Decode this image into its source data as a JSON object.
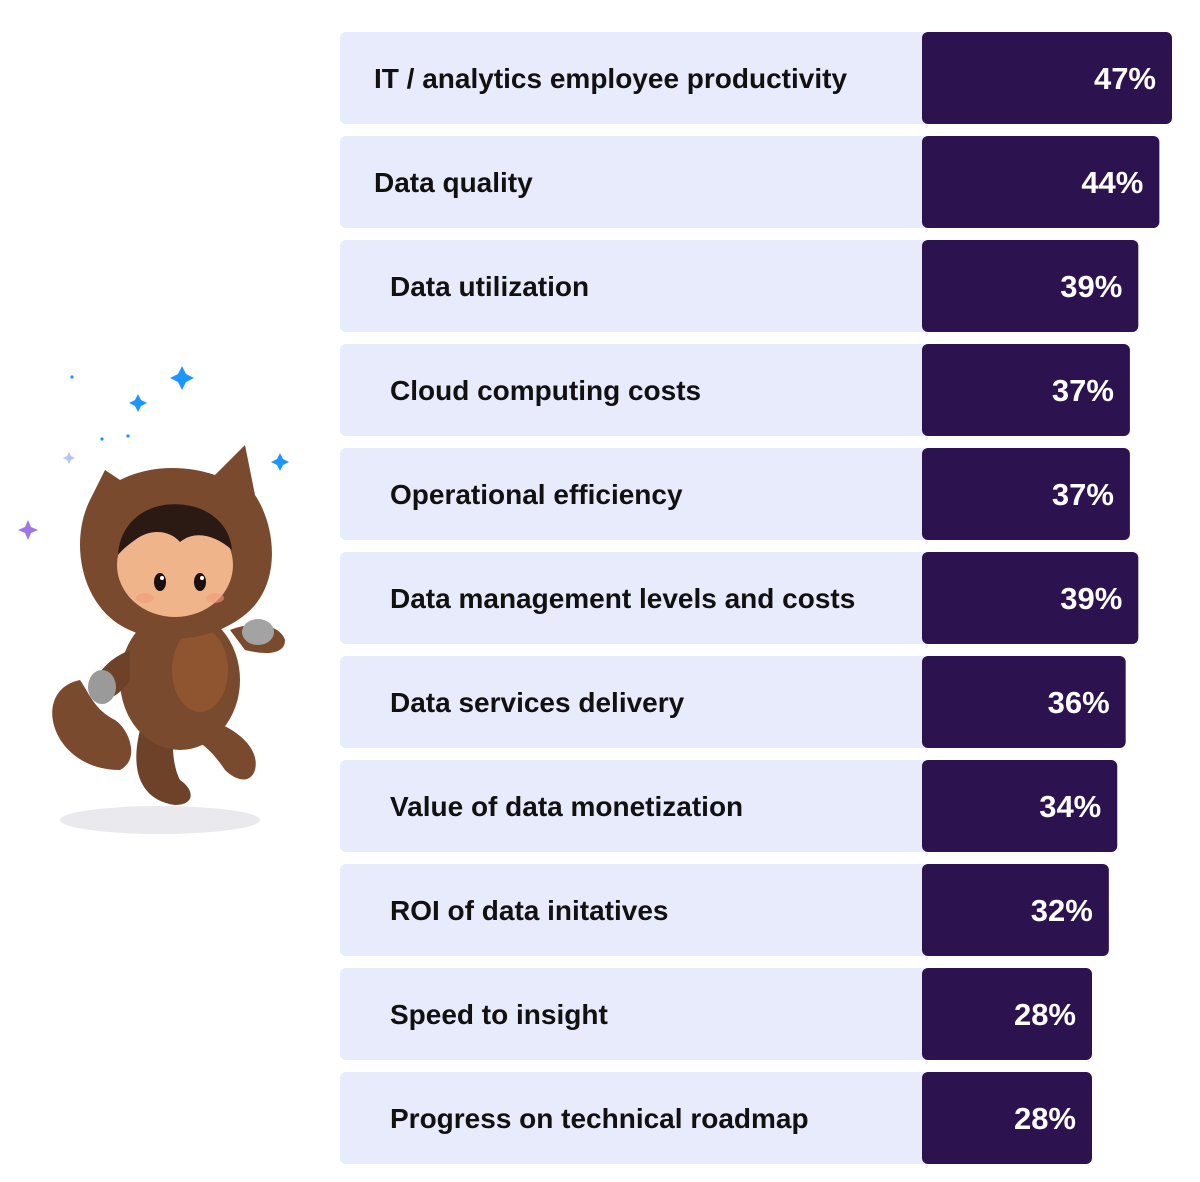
{
  "colors": {
    "row_background": "#e8ebfc",
    "bar": "#2d1250",
    "label_text": "#111111",
    "value_text": "#ffffff"
  },
  "illustration": {
    "icon": "astro-mascot-icon",
    "sparkle_colors": [
      "#1b96ff",
      "#9f76e8"
    ]
  },
  "chart_data": {
    "type": "bar",
    "orientation": "horizontal",
    "title": "",
    "xlabel": "",
    "ylabel": "",
    "categories": [
      "IT / analytics employee productivity",
      "Data quality",
      "Data utilization",
      "Cloud computing costs",
      "Operational efficiency",
      "Data management levels and costs",
      "Data services delivery",
      "Value of data monetization",
      "ROI of data initatives",
      "Speed to insight",
      "Progress on technical roadmap"
    ],
    "values": [
      47,
      44,
      39,
      37,
      37,
      39,
      36,
      34,
      32,
      28,
      28
    ],
    "value_labels": [
      "47%",
      "44%",
      "39%",
      "37%",
      "37%",
      "39%",
      "36%",
      "34%",
      "32%",
      "28%",
      "28%"
    ],
    "unit": "%",
    "grid": false,
    "legend": "none"
  }
}
